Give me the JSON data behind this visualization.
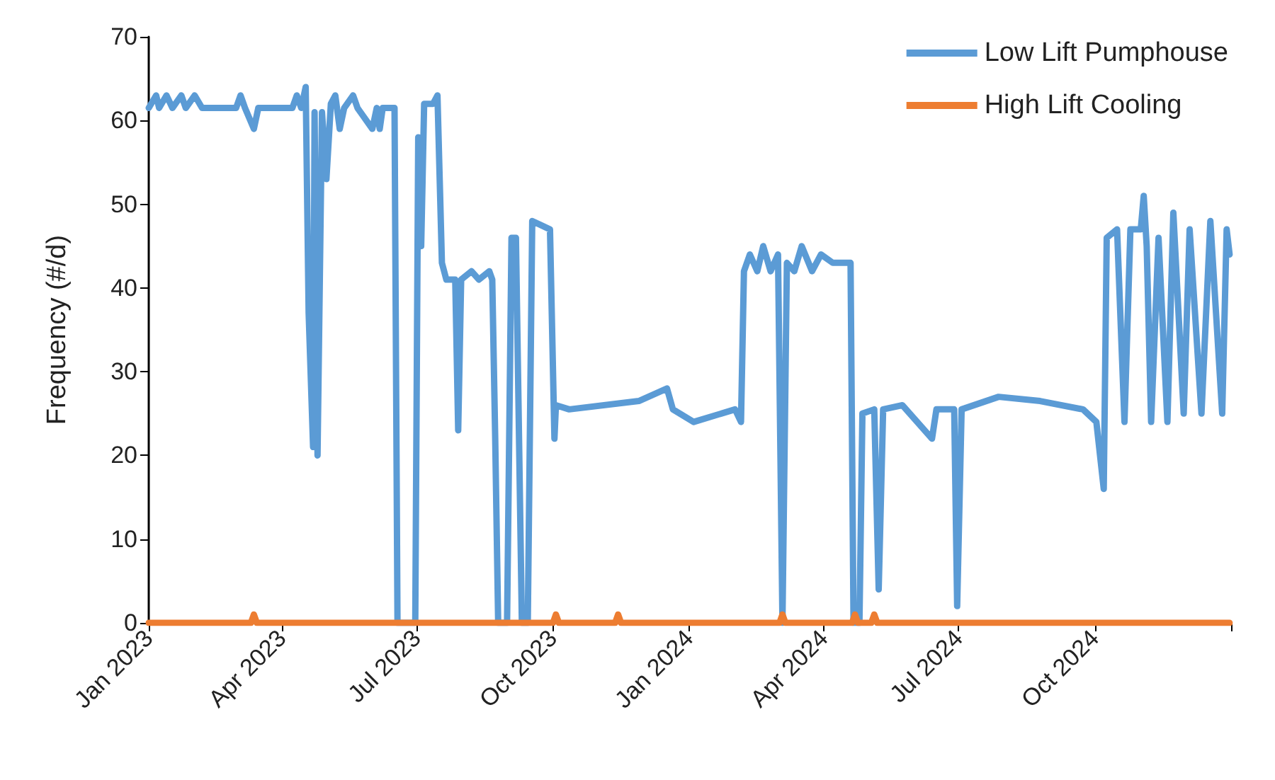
{
  "chart_data": {
    "type": "line",
    "ylabel": "Frequency (#/d)",
    "xlim": [
      "2023-01-01",
      "2025-01-01"
    ],
    "ylim": [
      0,
      70
    ],
    "yticks": [
      0,
      10,
      20,
      30,
      40,
      50,
      60,
      70
    ],
    "xticks": [
      {
        "value": "2023-01-01",
        "label": "Jan 2023"
      },
      {
        "value": "2023-04-01",
        "label": "Apr 2023"
      },
      {
        "value": "2023-07-01",
        "label": "Jul 2023"
      },
      {
        "value": "2023-10-01",
        "label": "Oct 2023"
      },
      {
        "value": "2024-01-01",
        "label": "Jan 2024"
      },
      {
        "value": "2024-04-01",
        "label": "Apr 2024"
      },
      {
        "value": "2024-07-01",
        "label": "Jul 2024"
      },
      {
        "value": "2024-10-01",
        "label": "Oct 2024"
      },
      {
        "value": "2025-01-01",
        "label": null
      }
    ],
    "grid": false,
    "legend": "top right",
    "marker": "none",
    "line_style": "solid",
    "series": [
      {
        "name": "Low Lift Pumphouse",
        "color": "#5b9bd5",
        "x": [
          "2023-01-01",
          "2023-01-06",
          "2023-01-08",
          "2023-01-13",
          "2023-01-17",
          "2023-01-23",
          "2023-01-26",
          "2023-02-01",
          "2023-02-06",
          "2023-03-01",
          "2023-03-04",
          "2023-03-07",
          "2023-03-13",
          "2023-03-16",
          "2023-04-08",
          "2023-04-11",
          "2023-04-14",
          "2023-04-17",
          "2023-04-19",
          "2023-04-22",
          "2023-04-23",
          "2023-04-25",
          "2023-04-28",
          "2023-05-01",
          "2023-05-04",
          "2023-05-07",
          "2023-05-10",
          "2023-05-13",
          "2023-05-19",
          "2023-05-22",
          "2023-06-01",
          "2023-06-04",
          "2023-06-06",
          "2023-06-08",
          "2023-06-16",
          "2023-06-18",
          "2023-06-30",
          "2023-07-02",
          "2023-07-04",
          "2023-07-06",
          "2023-07-12",
          "2023-07-15",
          "2023-07-18",
          "2023-07-21",
          "2023-07-27",
          "2023-07-29",
          "2023-07-31",
          "2023-08-07",
          "2023-08-12",
          "2023-08-19",
          "2023-08-21",
          "2023-08-23",
          "2023-08-25",
          "2023-08-31",
          "2023-09-03",
          "2023-09-06",
          "2023-09-10",
          "2023-09-14",
          "2023-09-17",
          "2023-09-29",
          "2023-10-02",
          "2023-10-03",
          "2023-10-12",
          "2023-11-28",
          "2023-12-17",
          "2023-12-21",
          "2024-01-04",
          "2024-02-01",
          "2024-02-05",
          "2024-02-07",
          "2024-02-11",
          "2024-02-16",
          "2024-02-20",
          "2024-02-25",
          "2024-03-01",
          "2024-03-04",
          "2024-03-07",
          "2024-03-12",
          "2024-03-17",
          "2024-03-24",
          "2024-03-30",
          "2024-04-07",
          "2024-04-19",
          "2024-04-21",
          "2024-04-25",
          "2024-04-27",
          "2024-05-05",
          "2024-05-08",
          "2024-05-11",
          "2024-05-24",
          "2024-06-13",
          "2024-06-16",
          "2024-06-28",
          "2024-06-30",
          "2024-07-03",
          "2024-07-28",
          "2024-08-25",
          "2024-09-23",
          "2024-10-02",
          "2024-10-07",
          "2024-10-09",
          "2024-10-16",
          "2024-10-21",
          "2024-10-25",
          "2024-11-01",
          "2024-11-03",
          "2024-11-05",
          "2024-11-08",
          "2024-11-13",
          "2024-11-19",
          "2024-11-23",
          "2024-11-30",
          "2024-12-04",
          "2024-12-12",
          "2024-12-18",
          "2024-12-26",
          "2024-12-29",
          "2024-12-31"
        ],
        "values": [
          61.5,
          63,
          61.5,
          63,
          61.5,
          63,
          61.5,
          63,
          61.5,
          61.5,
          63,
          61.5,
          59,
          61.5,
          61.5,
          63,
          61.5,
          64,
          37,
          21,
          61,
          20,
          61,
          53,
          62,
          63,
          59,
          61.5,
          63,
          61.5,
          59,
          61.5,
          59,
          61.5,
          61.5,
          0,
          0,
          58,
          45,
          62,
          62,
          63,
          43,
          41,
          41,
          23,
          41,
          42,
          41,
          42,
          41,
          22,
          0,
          0,
          46,
          46,
          0,
          0,
          48,
          47,
          22,
          26,
          25.5,
          26.5,
          28,
          25.5,
          24,
          25.5,
          24,
          42,
          44,
          42,
          45,
          42,
          44,
          0,
          43,
          42,
          45,
          42,
          44,
          43,
          43,
          0,
          0,
          25,
          25.5,
          4,
          25.5,
          26,
          22,
          25.5,
          25.5,
          2,
          25.5,
          27,
          26.5,
          25.5,
          24,
          16,
          46,
          47,
          24,
          47,
          47,
          51,
          45,
          24,
          46,
          24,
          49,
          25,
          47,
          25,
          48,
          25,
          47,
          44
        ]
      },
      {
        "name": "High Lift Cooling",
        "color": "#ed7d31",
        "x": [
          "2023-01-01",
          "2023-03-11",
          "2023-03-13",
          "2023-03-15",
          "2023-10-01",
          "2023-10-03",
          "2023-10-05",
          "2023-11-12",
          "2023-11-14",
          "2023-11-16",
          "2024-03-02",
          "2024-03-04",
          "2024-03-06",
          "2024-04-20",
          "2024-04-22",
          "2024-04-24",
          "2024-05-03",
          "2024-05-05",
          "2024-05-07",
          "2024-12-31"
        ],
        "values": [
          0,
          0,
          1,
          0,
          0,
          1,
          0,
          0,
          1,
          0,
          0,
          1,
          0,
          0,
          1,
          0,
          0,
          1,
          0,
          0
        ]
      }
    ]
  }
}
